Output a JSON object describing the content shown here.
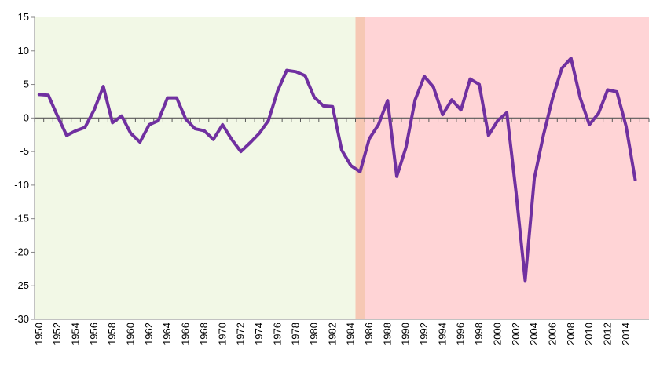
{
  "chart_data": {
    "type": "line",
    "title": "",
    "xlabel": "",
    "ylabel": "",
    "ylim": [
      -30,
      15
    ],
    "yticks": [
      15,
      10,
      5,
      0,
      -5,
      -10,
      -15,
      -20,
      -25,
      -30
    ],
    "ytick_labels": [
      "15",
      "10",
      "5",
      "0",
      "-5",
      "-10",
      "-15",
      "-20",
      "-25",
      "-30"
    ],
    "xlim": [
      1949.5,
      2016.5
    ],
    "xtick_labels": [
      "1950",
      "1952",
      "1954",
      "1956",
      "1958",
      "1960",
      "1962",
      "1964",
      "1966",
      "1968",
      "1970",
      "1972",
      "1974",
      "1976",
      "1978",
      "1980",
      "1982",
      "1984",
      "1986",
      "1988",
      "1990",
      "1992",
      "1994",
      "1996",
      "1998",
      "2000",
      "2002",
      "2004",
      "2006",
      "2008",
      "2010",
      "2012",
      "2014"
    ],
    "shaded_regions": [
      {
        "name": "period-1950-1984",
        "from": 1949.5,
        "to": 1984.5,
        "color": "#f2f8e6"
      },
      {
        "name": "transition-1985",
        "from": 1984.5,
        "to": 1985.5,
        "color": "#f6c8b4"
      },
      {
        "name": "period-1986-2016",
        "from": 1985.5,
        "to": 2016.5,
        "color": "#ffd4d6"
      }
    ],
    "colors": {
      "line": "#7030a0",
      "axis": "#868686",
      "zero_line": "#595959"
    },
    "series": [
      {
        "name": "series-1",
        "x": [
          1950,
          1951,
          1952,
          1953,
          1954,
          1955,
          1956,
          1957,
          1958,
          1959,
          1960,
          1961,
          1962,
          1963,
          1964,
          1965,
          1966,
          1967,
          1968,
          1969,
          1970,
          1971,
          1972,
          1973,
          1974,
          1975,
          1976,
          1977,
          1978,
          1979,
          1980,
          1981,
          1982,
          1983,
          1984,
          1985,
          1986,
          1987,
          1988,
          1989,
          1990,
          1991,
          1992,
          1993,
          1994,
          1995,
          1996,
          1997,
          1998,
          1999,
          2000,
          2001,
          2002,
          2003,
          2004,
          2005,
          2006,
          2007,
          2008,
          2009,
          2010,
          2011,
          2012,
          2013,
          2014,
          2015
        ],
        "values": [
          3.5,
          3.4,
          0.3,
          -2.6,
          -1.9,
          -1.4,
          1.2,
          4.7,
          -0.7,
          0.3,
          -2.3,
          -3.6,
          -1.0,
          -0.4,
          3.0,
          3.0,
          -0.2,
          -1.6,
          -1.9,
          -3.2,
          -1.0,
          -3.2,
          -5.0,
          -3.7,
          -2.3,
          -0.4,
          4.0,
          7.1,
          6.9,
          6.3,
          3.1,
          1.8,
          1.7,
          -4.8,
          -7.1,
          -8.0,
          -3.1,
          -1.0,
          2.6,
          -8.7,
          -4.4,
          2.7,
          6.2,
          4.6,
          0.5,
          2.7,
          1.2,
          5.8,
          5.0,
          -2.6,
          -0.4,
          0.8,
          -11.0,
          -24.2,
          -9.0,
          -2.5,
          3.0,
          7.4,
          8.9,
          3.0,
          -1.0,
          0.7,
          4.2,
          3.9,
          -1.2,
          -9.2
        ]
      }
    ]
  }
}
